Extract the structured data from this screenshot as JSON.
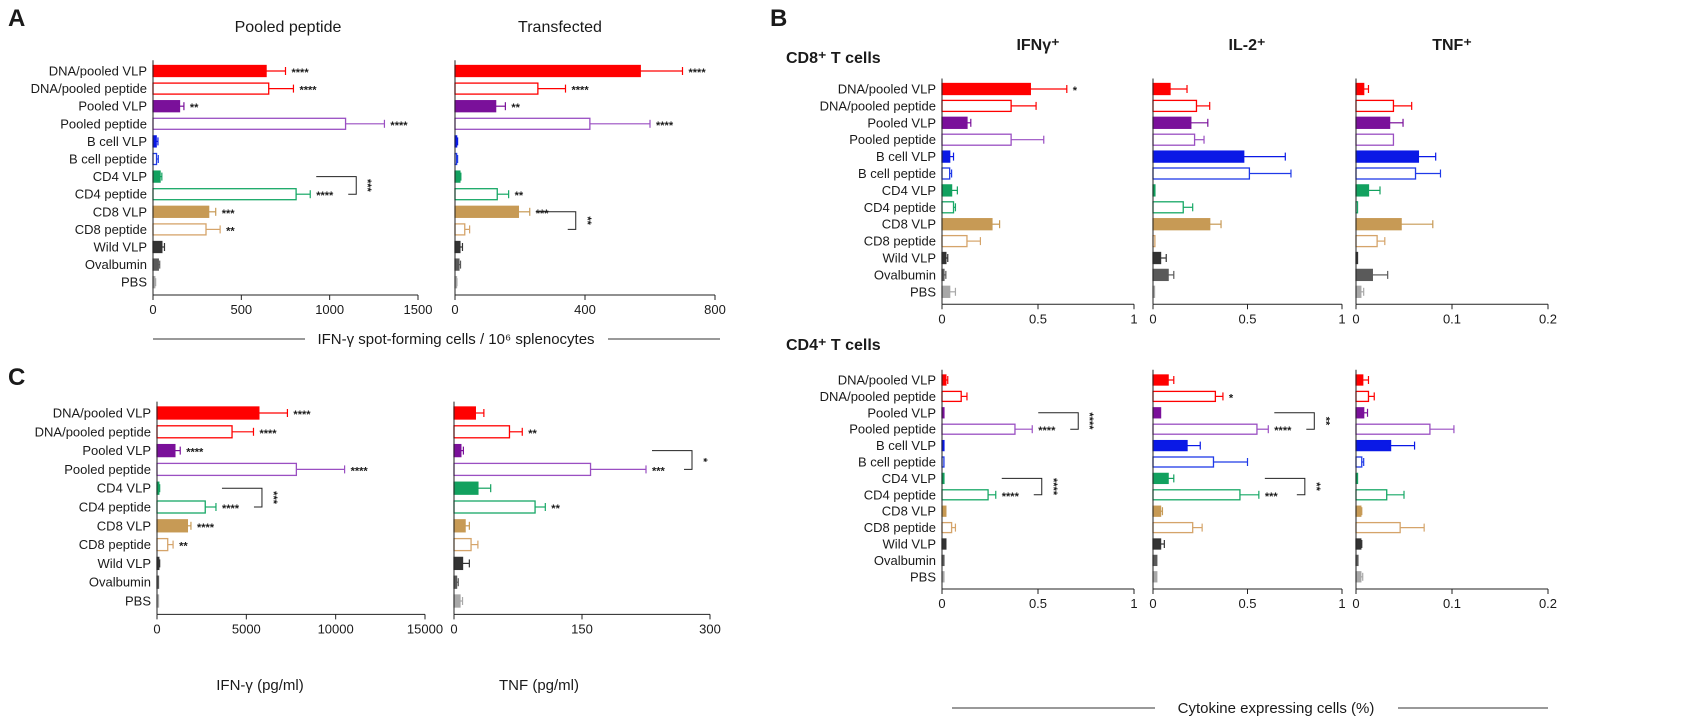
{
  "colors": {
    "DNA/pooled VLP": "#ff0000",
    "DNA/pooled peptide": "#ff0000",
    "Pooled VLP": "#7a109a",
    "Pooled peptide": "#9a4fc2",
    "B cell VLP": "#0a19e6",
    "B cell peptide": "#1f3ae8",
    "CD4 VLP": "#12a15f",
    "CD4 peptide": "#17a866",
    "CD8 VLP": "#c79a55",
    "CD8 peptide": "#d5a46a",
    "Wild VLP": "#333333",
    "Ovalbumin": "#5a5a5a",
    "PBS": "#a8a8a8"
  },
  "chart_data": [
    {
      "id": "A1",
      "letter": "A",
      "type": "bar",
      "orientation": "horizontal",
      "title": "Pooled peptide",
      "categories": [
        "DNA/pooled VLP",
        "DNA/pooled peptide",
        "Pooled VLP",
        "Pooled peptide",
        "B cell VLP",
        "B cell peptide",
        "CD4 VLP",
        "CD4 peptide",
        "CD8 VLP",
        "CD8 peptide",
        "Wild VLP",
        "Ovalbumin",
        "PBS"
      ],
      "filled": [
        true,
        false,
        true,
        false,
        true,
        false,
        true,
        false,
        true,
        false,
        true,
        true,
        true
      ],
      "values": [
        640,
        655,
        150,
        1090,
        18,
        20,
        40,
        810,
        315,
        300,
        50,
        30,
        10
      ],
      "errors": [
        110,
        140,
        25,
        220,
        10,
        10,
        10,
        80,
        40,
        80,
        15,
        8,
        5
      ],
      "significance": [
        "****",
        "****",
        "**",
        "****",
        "",
        "",
        "",
        "****",
        "***",
        "**",
        "",
        "",
        ""
      ],
      "brackets": [
        {
          "from": 6,
          "to": 7,
          "label": "***"
        }
      ],
      "xlim": [
        0,
        1500
      ],
      "xticks": [
        0,
        500,
        1000,
        1500
      ]
    },
    {
      "id": "A2",
      "type": "bar",
      "orientation": "horizontal",
      "title": "Transfected",
      "categories": [
        "DNA/pooled VLP",
        "DNA/pooled peptide",
        "Pooled VLP",
        "Pooled peptide",
        "B cell VLP",
        "B cell peptide",
        "CD4 VLP",
        "CD4 peptide",
        "CD8 VLP",
        "CD8 peptide",
        "Wild VLP",
        "Ovalbumin",
        "PBS"
      ],
      "filled": [
        true,
        false,
        true,
        false,
        true,
        false,
        true,
        false,
        true,
        false,
        true,
        true,
        true
      ],
      "values": [
        570,
        255,
        125,
        415,
        5,
        5,
        15,
        130,
        195,
        30,
        15,
        12,
        3
      ],
      "errors": [
        130,
        85,
        30,
        185,
        3,
        3,
        3,
        35,
        35,
        15,
        8,
        5,
        3
      ],
      "significance": [
        "****",
        "****",
        "**",
        "****",
        "",
        "",
        "",
        "**",
        "***",
        "",
        "",
        "",
        ""
      ],
      "brackets": [
        {
          "from": 8,
          "to": 9,
          "label": "**"
        }
      ],
      "xlim": [
        0,
        800
      ],
      "xticks": [
        0,
        400,
        800
      ]
    },
    {
      "id": "B1",
      "letter": "B",
      "type": "bar",
      "orientation": "horizontal",
      "title": "IFNγ⁺",
      "group": "CD8⁺ T cells",
      "categories": [
        "DNA/pooled VLP",
        "DNA/pooled peptide",
        "Pooled VLP",
        "Pooled peptide",
        "B cell VLP",
        "B cell peptide",
        "CD4 VLP",
        "CD4 peptide",
        "CD8 VLP",
        "CD8 peptide",
        "Wild VLP",
        "Ovalbumin",
        "PBS"
      ],
      "filled": [
        true,
        false,
        true,
        false,
        true,
        false,
        true,
        false,
        true,
        false,
        true,
        true,
        true
      ],
      "values": [
        0.46,
        0.36,
        0.13,
        0.36,
        0.04,
        0.04,
        0.05,
        0.06,
        0.26,
        0.13,
        0.02,
        0.01,
        0.04
      ],
      "errors": [
        0.19,
        0.13,
        0.02,
        0.17,
        0.02,
        0.01,
        0.03,
        0.01,
        0.04,
        0.07,
        0.01,
        0.01,
        0.03
      ],
      "significance": [
        "*",
        "",
        "",
        "",
        "",
        "",
        "",
        "",
        "",
        "",
        "",
        "",
        ""
      ],
      "brackets": [],
      "xlim": [
        0,
        1
      ],
      "xticks": [
        0,
        0.5,
        1
      ]
    },
    {
      "id": "B2",
      "type": "bar",
      "orientation": "horizontal",
      "title": "IL-2⁺",
      "categories": [
        "DNA/pooled VLP",
        "DNA/pooled peptide",
        "Pooled VLP",
        "Pooled peptide",
        "B cell VLP",
        "B cell peptide",
        "CD4 VLP",
        "CD4 peptide",
        "CD8 VLP",
        "CD8 peptide",
        "Wild VLP",
        "Ovalbumin",
        "PBS"
      ],
      "filled": [
        true,
        false,
        true,
        false,
        true,
        false,
        true,
        false,
        true,
        false,
        true,
        true,
        true
      ],
      "values": [
        0.09,
        0.23,
        0.2,
        0.22,
        0.48,
        0.51,
        0.01,
        0.16,
        0.3,
        0.01,
        0.04,
        0.08,
        0.0
      ],
      "errors": [
        0.09,
        0.07,
        0.09,
        0.05,
        0.22,
        0.22,
        0.0,
        0.05,
        0.06,
        0.0,
        0.03,
        0.03,
        0.0
      ],
      "significance": [
        "",
        "",
        "",
        "",
        "",
        "",
        "",
        "",
        "",
        "",
        "",
        "",
        ""
      ],
      "brackets": [],
      "xlim": [
        0,
        1
      ],
      "xticks": [
        0,
        0.5,
        1
      ]
    },
    {
      "id": "B3",
      "type": "bar",
      "orientation": "horizontal",
      "title": "TNF⁺",
      "categories": [
        "DNA/pooled VLP",
        "DNA/pooled peptide",
        "Pooled VLP",
        "Pooled peptide",
        "B cell VLP",
        "B cell peptide",
        "CD4 VLP",
        "CD4 peptide",
        "CD8 VLP",
        "CD8 peptide",
        "Wild VLP",
        "Ovalbumin",
        "PBS"
      ],
      "filled": [
        true,
        false,
        true,
        false,
        true,
        false,
        true,
        false,
        true,
        false,
        true,
        true,
        true
      ],
      "values": [
        0.008,
        0.039,
        0.035,
        0.039,
        0.065,
        0.062,
        0.013,
        0.0,
        0.047,
        0.022,
        0.0,
        0.017,
        0.005
      ],
      "errors": [
        0.005,
        0.019,
        0.014,
        0.0,
        0.018,
        0.026,
        0.012,
        0.0,
        0.033,
        0.008,
        0.0,
        0.016,
        0.003
      ],
      "significance": [
        "",
        "",
        "",
        "",
        "",
        "",
        "",
        "",
        "",
        "",
        "",
        "",
        ""
      ],
      "brackets": [],
      "xlim": [
        0,
        0.2
      ],
      "xticks": [
        0,
        0.1,
        0.2
      ]
    },
    {
      "id": "B4",
      "type": "bar",
      "orientation": "horizontal",
      "title": "",
      "group": "CD4⁺ T cells",
      "categories": [
        "DNA/pooled VLP",
        "DNA/pooled peptide",
        "Pooled VLP",
        "Pooled peptide",
        "B cell VLP",
        "B cell peptide",
        "CD4 VLP",
        "CD4 peptide",
        "CD8 VLP",
        "CD8 peptide",
        "Wild VLP",
        "Ovalbumin",
        "PBS"
      ],
      "filled": [
        true,
        false,
        true,
        false,
        true,
        false,
        true,
        false,
        true,
        false,
        true,
        true,
        true
      ],
      "values": [
        0.02,
        0.1,
        0.01,
        0.38,
        0.01,
        0.01,
        0.01,
        0.24,
        0.02,
        0.05,
        0.02,
        0.01,
        0.01
      ],
      "errors": [
        0.01,
        0.03,
        0.0,
        0.09,
        0.0,
        0.0,
        0.0,
        0.04,
        0.0,
        0.02,
        0.0,
        0.0,
        0.0
      ],
      "significance": [
        "",
        "",
        "",
        "****",
        "",
        "",
        "",
        "****",
        "",
        "",
        "",
        "",
        ""
      ],
      "brackets": [
        {
          "from": 2,
          "to": 3,
          "label": "****"
        },
        {
          "from": 6,
          "to": 7,
          "label": "****"
        }
      ],
      "xlim": [
        0,
        1
      ],
      "xticks": [
        0,
        0.5,
        1
      ]
    },
    {
      "id": "B5",
      "type": "bar",
      "orientation": "horizontal",
      "title": "",
      "categories": [
        "DNA/pooled VLP",
        "DNA/pooled peptide",
        "Pooled VLP",
        "Pooled peptide",
        "B cell VLP",
        "B cell peptide",
        "CD4 VLP",
        "CD4 peptide",
        "CD8 VLP",
        "CD8 peptide",
        "Wild VLP",
        "Ovalbumin",
        "PBS"
      ],
      "filled": [
        true,
        false,
        true,
        false,
        true,
        false,
        true,
        false,
        true,
        false,
        true,
        true,
        true
      ],
      "values": [
        0.08,
        0.33,
        0.04,
        0.55,
        0.18,
        0.32,
        0.08,
        0.46,
        0.04,
        0.21,
        0.04,
        0.02,
        0.02
      ],
      "errors": [
        0.03,
        0.04,
        0.0,
        0.06,
        0.07,
        0.18,
        0.03,
        0.1,
        0.01,
        0.05,
        0.02,
        0.0,
        0.0
      ],
      "significance": [
        "",
        "*",
        "",
        "****",
        "",
        "",
        "",
        "***",
        "",
        "",
        "",
        "",
        ""
      ],
      "brackets": [
        {
          "from": 2,
          "to": 3,
          "label": "**"
        },
        {
          "from": 6,
          "to": 7,
          "label": "**"
        }
      ],
      "xlim": [
        0,
        1
      ],
      "xticks": [
        0,
        0.5,
        1
      ]
    },
    {
      "id": "B6",
      "type": "bar",
      "orientation": "horizontal",
      "title": "",
      "categories": [
        "DNA/pooled VLP",
        "DNA/pooled peptide",
        "Pooled VLP",
        "Pooled peptide",
        "B cell VLP",
        "B cell peptide",
        "CD4 VLP",
        "CD4 peptide",
        "CD8 VLP",
        "CD8 peptide",
        "Wild VLP",
        "Ovalbumin",
        "PBS"
      ],
      "filled": [
        true,
        false,
        true,
        false,
        true,
        false,
        true,
        false,
        true,
        false,
        true,
        true,
        true
      ],
      "values": [
        0.007,
        0.013,
        0.008,
        0.077,
        0.036,
        0.006,
        0.0,
        0.032,
        0.005,
        0.046,
        0.005,
        0.002,
        0.005
      ],
      "errors": [
        0.006,
        0.006,
        0.004,
        0.025,
        0.025,
        0.002,
        0.0,
        0.018,
        0.001,
        0.025,
        0.001,
        0.0,
        0.002
      ],
      "significance": [
        "",
        "",
        "",
        "",
        "",
        "",
        "",
        "",
        "",
        "",
        "",
        "",
        ""
      ],
      "brackets": [],
      "xlim": [
        0,
        0.2
      ],
      "xticks": [
        0,
        0.1,
        0.2
      ]
    },
    {
      "id": "C1",
      "letter": "C",
      "type": "bar",
      "orientation": "horizontal",
      "title": "",
      "xlabel": "IFN-γ (pg/ml)",
      "categories": [
        "DNA/pooled VLP",
        "DNA/pooled peptide",
        "Pooled VLP",
        "Pooled peptide",
        "CD4 VLP",
        "CD4 peptide",
        "CD8 VLP",
        "CD8 peptide",
        "Wild VLP",
        "Ovalbumin",
        "PBS"
      ],
      "filled": [
        true,
        false,
        true,
        false,
        true,
        false,
        true,
        false,
        true,
        true,
        true
      ],
      "values": [
        5700,
        4200,
        1000,
        7800,
        100,
        2700,
        1700,
        600,
        100,
        50,
        50
      ],
      "errors": [
        1600,
        1200,
        300,
        2700,
        50,
        600,
        200,
        300,
        50,
        20,
        20
      ],
      "significance": [
        "****",
        "****",
        "****",
        "****",
        "",
        "****",
        "****",
        "**",
        "",
        "",
        ""
      ],
      "brackets": [
        {
          "from": 4,
          "to": 5,
          "label": "***"
        }
      ],
      "xlim": [
        0,
        15000
      ],
      "xticks": [
        0,
        5000,
        10000,
        15000
      ]
    },
    {
      "id": "C2",
      "type": "bar",
      "orientation": "horizontal",
      "title": "",
      "xlabel": "TNF (pg/ml)",
      "categories": [
        "DNA/pooled VLP",
        "DNA/pooled peptide",
        "Pooled VLP",
        "Pooled peptide",
        "CD4 VLP",
        "CD4 peptide",
        "CD8 VLP",
        "CD8 peptide",
        "Wild VLP",
        "Ovalbumin",
        "PBS"
      ],
      "filled": [
        true,
        false,
        true,
        false,
        true,
        false,
        true,
        false,
        true,
        true,
        true
      ],
      "values": [
        25,
        65,
        8,
        160,
        28,
        95,
        13,
        20,
        10,
        3,
        7
      ],
      "errors": [
        10,
        15,
        3,
        65,
        15,
        12,
        5,
        8,
        8,
        2,
        3
      ],
      "significance": [
        "",
        "**",
        "",
        "***",
        "",
        "**",
        "",
        "",
        "",
        "",
        ""
      ],
      "brackets": [
        {
          "from": 2,
          "to": 3,
          "label": "*"
        }
      ],
      "xlim": [
        0,
        300
      ],
      "xticks": [
        0,
        150,
        300
      ]
    }
  ],
  "shared_labels": {
    "A": "IFN-γ spot-forming cells / 10⁶ splenocytes",
    "B": "Cytokine expressing cells (%)"
  }
}
